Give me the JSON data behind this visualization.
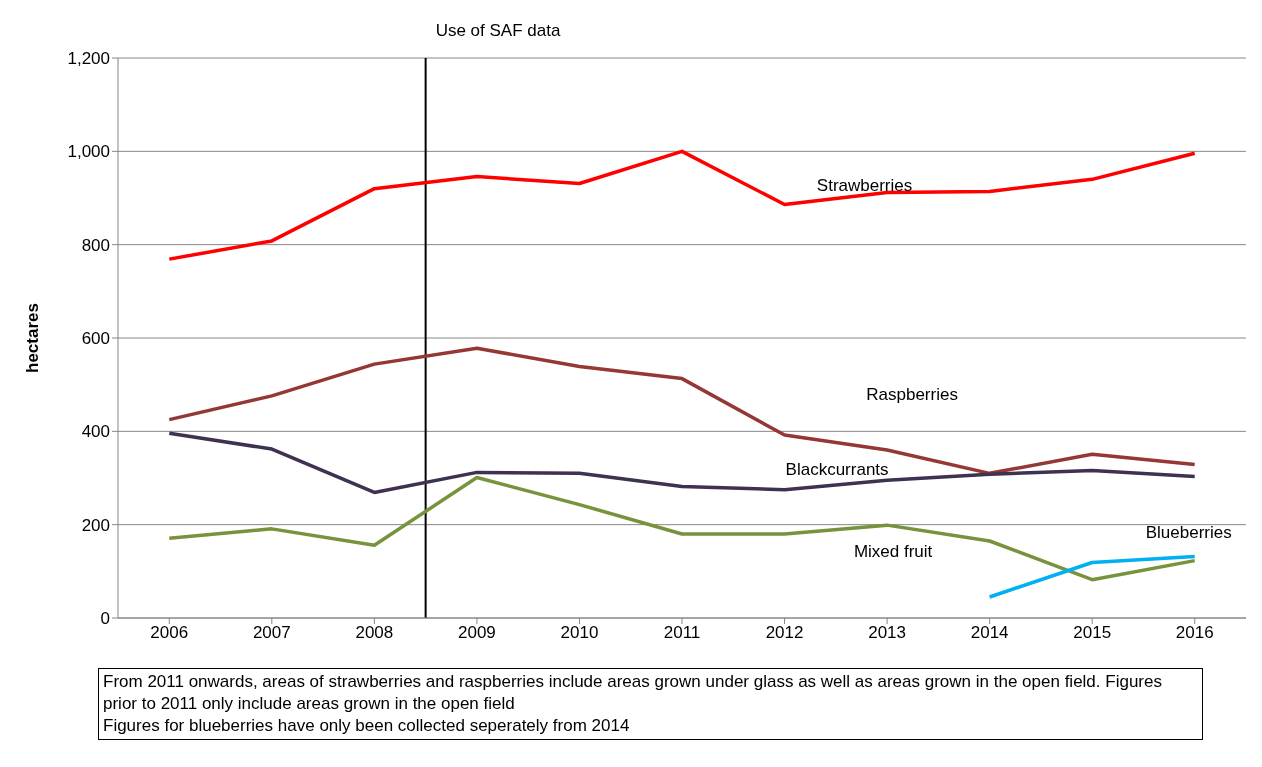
{
  "chart_data": {
    "type": "line",
    "ylabel": "hectares",
    "x": [
      2006,
      2007,
      2008,
      2009,
      2010,
      2011,
      2012,
      2013,
      2014,
      2015,
      2016
    ],
    "xlim": [
      2005.5,
      2016.5
    ],
    "xticks": [
      2006,
      2007,
      2008,
      2009,
      2010,
      2011,
      2012,
      2013,
      2014,
      2015,
      2016
    ],
    "ylim": [
      0,
      1200
    ],
    "yticks": [
      0,
      {
        "value": 200,
        "label": "200"
      },
      {
        "value": 400,
        "label": "400"
      },
      {
        "value": 600,
        "label": "600"
      },
      {
        "value": 800,
        "label": "800"
      },
      {
        "value": 1000,
        "label": "1,000"
      },
      {
        "value": 1200,
        "label": "1,200"
      }
    ],
    "grid": "y",
    "marker": "none",
    "line_style": "solid",
    "series": [
      {
        "name": "Strawberries",
        "color": "#ff0000",
        "values": [
          769,
          808,
          920,
          946,
          931,
          1000,
          886,
          912,
          914,
          940,
          996
        ]
      },
      {
        "name": "Raspberries",
        "color": "#953735",
        "values": [
          425,
          476,
          544,
          578,
          539,
          513,
          392,
          360,
          310,
          351,
          329
        ]
      },
      {
        "name": "Blackcurrants",
        "color": "#3f3151",
        "values": [
          396,
          362,
          269,
          312,
          310,
          282,
          275,
          295,
          308,
          316,
          303
        ]
      },
      {
        "name": "Mixed fruit",
        "color": "#77933c",
        "values": [
          171,
          191,
          156,
          301,
          243,
          180,
          180,
          199,
          165,
          82,
          123
        ]
      },
      {
        "name": "Blueberries",
        "color": "#00b0f0",
        "values": [
          null,
          null,
          null,
          null,
          null,
          null,
          null,
          null,
          45,
          119,
          132
        ]
      }
    ],
    "ref_lines": [
      {
        "axis": "x",
        "value": 2008.5,
        "label": "Use of SAF data",
        "color": "#000000"
      }
    ],
    "annotations": [
      "From 2011 onwards, areas of strawberries and raspberries include areas grown under glass as well as areas grown in the open field.  Figures prior to 2011 only include areas grown in the open field",
      "Figures for blueberries have only been collected seperately from 2014"
    ]
  }
}
